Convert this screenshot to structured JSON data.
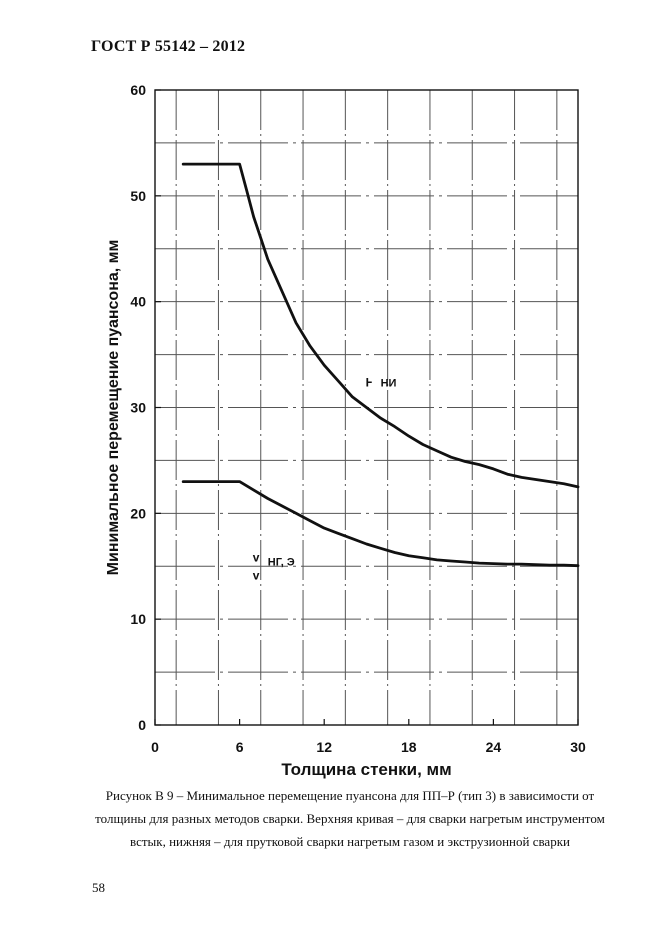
{
  "header": {
    "title": "ГОСТ Р  55142 – 2012"
  },
  "caption": "Рисунок В 9 – Минимальное перемещение пуансона  для ПП–Р (тип 3) в зависимости от толщины для разных методов сварки. Верхняя кривая – для сварки нагретым инструментом встык, нижняя – для прутковой сварки нагретым газом и экструзионной сварки",
  "page_number": "58",
  "chart_data": {
    "type": "line",
    "xlabel": "Толщина стенки, мм",
    "ylabel": "Минимальное перемещение пуансона, мм",
    "xlim": [
      0,
      30
    ],
    "ylim": [
      0,
      60
    ],
    "x_ticks": [
      0,
      6,
      12,
      18,
      24,
      30
    ],
    "y_ticks": [
      0,
      10,
      20,
      30,
      40,
      50,
      60
    ],
    "grid": true,
    "series": [
      {
        "name": "НИ",
        "x": [
          2,
          6,
          6.5,
          7,
          7.5,
          8,
          9,
          10,
          11,
          12,
          13,
          14,
          15,
          16,
          17,
          18,
          19,
          20,
          21,
          22,
          23,
          24,
          25,
          26,
          27,
          28,
          29,
          30
        ],
        "y": [
          53,
          53,
          50.5,
          48,
          46,
          44,
          41,
          38,
          35.8,
          34,
          32.5,
          31,
          30,
          29,
          28.2,
          27.3,
          26.5,
          25.9,
          25.3,
          24.9,
          24.6,
          24.2,
          23.7,
          23.4,
          23.2,
          23,
          22.8,
          22.5
        ],
        "label_marker": "Ⱶ"
      },
      {
        "name": "НГ, Э",
        "x": [
          2,
          6,
          7,
          8,
          9,
          10,
          11,
          12,
          13,
          14,
          15,
          16,
          17,
          18,
          19,
          20,
          21,
          22,
          23,
          24,
          25,
          26,
          27,
          28,
          29,
          30
        ],
        "y": [
          23,
          23,
          22.2,
          21.4,
          20.7,
          20,
          19.3,
          18.6,
          18.1,
          17.6,
          17.1,
          16.7,
          16.3,
          16,
          15.8,
          15.6,
          15.5,
          15.4,
          15.3,
          15.25,
          15.2,
          15.2,
          15.15,
          15.1,
          15.1,
          15.05
        ],
        "label_marker": "v"
      }
    ]
  }
}
